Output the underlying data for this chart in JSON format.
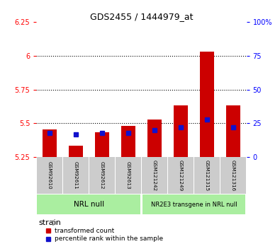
{
  "title": "GDS2455 / 1444979_at",
  "samples": [
    "GSM92610",
    "GSM92611",
    "GSM92612",
    "GSM92613",
    "GSM121242",
    "GSM121249",
    "GSM121315",
    "GSM121316"
  ],
  "transformed_count": [
    5.455,
    5.332,
    5.435,
    5.48,
    5.53,
    5.635,
    6.03,
    5.635
  ],
  "percentile_rank": [
    18,
    17,
    18,
    18,
    20,
    22,
    28,
    22
  ],
  "ylim_left": [
    5.25,
    6.25
  ],
  "ylim_right": [
    0,
    100
  ],
  "yticks_left": [
    5.25,
    5.5,
    5.75,
    6.0,
    6.25
  ],
  "yticks_right": [
    0,
    25,
    50,
    75,
    100
  ],
  "ytick_labels_left": [
    "5.25",
    "5.5",
    "5.75",
    "6",
    "6.25"
  ],
  "ytick_labels_right": [
    "0",
    "25",
    "50",
    "75",
    "100%"
  ],
  "hlines": [
    5.5,
    5.75,
    6.0
  ],
  "bar_bottom": 5.25,
  "bar_color_red": "#cc0000",
  "bar_color_blue": "#1111cc",
  "group1_label": "NRL null",
  "group2_label": "NR2E3 transgene in NRL null",
  "group1_indices": [
    0,
    1,
    2,
    3
  ],
  "group2_indices": [
    4,
    5,
    6,
    7
  ],
  "group_bg_color": "#aaeea0",
  "tick_bg_color": "#cccccc",
  "legend_red": "transformed count",
  "legend_blue": "percentile rank within the sample",
  "strain_label": "strain",
  "bar_width": 0.55,
  "blue_marker_size": 5.0
}
